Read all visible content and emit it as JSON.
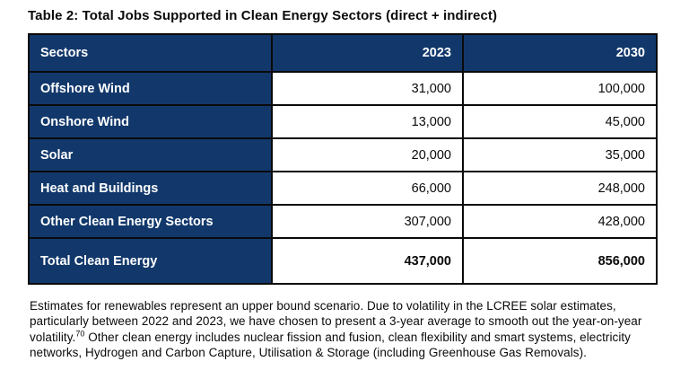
{
  "title": "Table 2: Total Jobs Supported in Clean Energy Sectors (direct + indirect)",
  "table": {
    "headers": [
      "Sectors",
      "2023",
      "2030"
    ],
    "rows": [
      {
        "sector": "Offshore Wind",
        "y2023": "31,000",
        "y2030": "100,000"
      },
      {
        "sector": "Onshore Wind",
        "y2023": "13,000",
        "y2030": "45,000"
      },
      {
        "sector": "Solar",
        "y2023": "20,000",
        "y2030": "35,000"
      },
      {
        "sector": "Heat and Buildings",
        "y2023": "66,000",
        "y2030": "248,000"
      },
      {
        "sector": "Other Clean Energy Sectors",
        "y2023": "307,000",
        "y2030": "428,000"
      },
      {
        "sector": "Total Clean Energy",
        "y2023": "437,000",
        "y2030": "856,000"
      }
    ]
  },
  "chart_data": {
    "type": "table",
    "title": "Table 2: Total Jobs Supported in Clean Energy Sectors (direct + indirect)",
    "categories": [
      "Offshore Wind",
      "Onshore Wind",
      "Solar",
      "Heat and Buildings",
      "Other Clean Energy Sectors",
      "Total Clean Energy"
    ],
    "series": [
      {
        "name": "2023",
        "values": [
          31000,
          13000,
          20000,
          66000,
          307000,
          437000
        ]
      },
      {
        "name": "2030",
        "values": [
          100000,
          45000,
          35000,
          248000,
          428000,
          856000
        ]
      }
    ]
  },
  "footnote": {
    "part1": "Estimates for renewables represent an upper bound scenario. Due to volatility in the LCREE solar estimates, particularly between 2022 and 2023, we have chosen to present a 3-year average to smooth out the year-on-year volatility.",
    "ref": "70",
    "part2": " Other clean energy includes nuclear fission and fusion, clean flexibility and smart systems, electricity networks, Hydrogen and Carbon Capture, Utilisation & Storage (including Greenhouse Gas Removals)."
  },
  "colors": {
    "header_navy": "#12386b",
    "border_black": "#0a0a0a",
    "header_text": "#ffffff",
    "body_text": "#0a0a0a",
    "page_background": "#ffffff"
  }
}
